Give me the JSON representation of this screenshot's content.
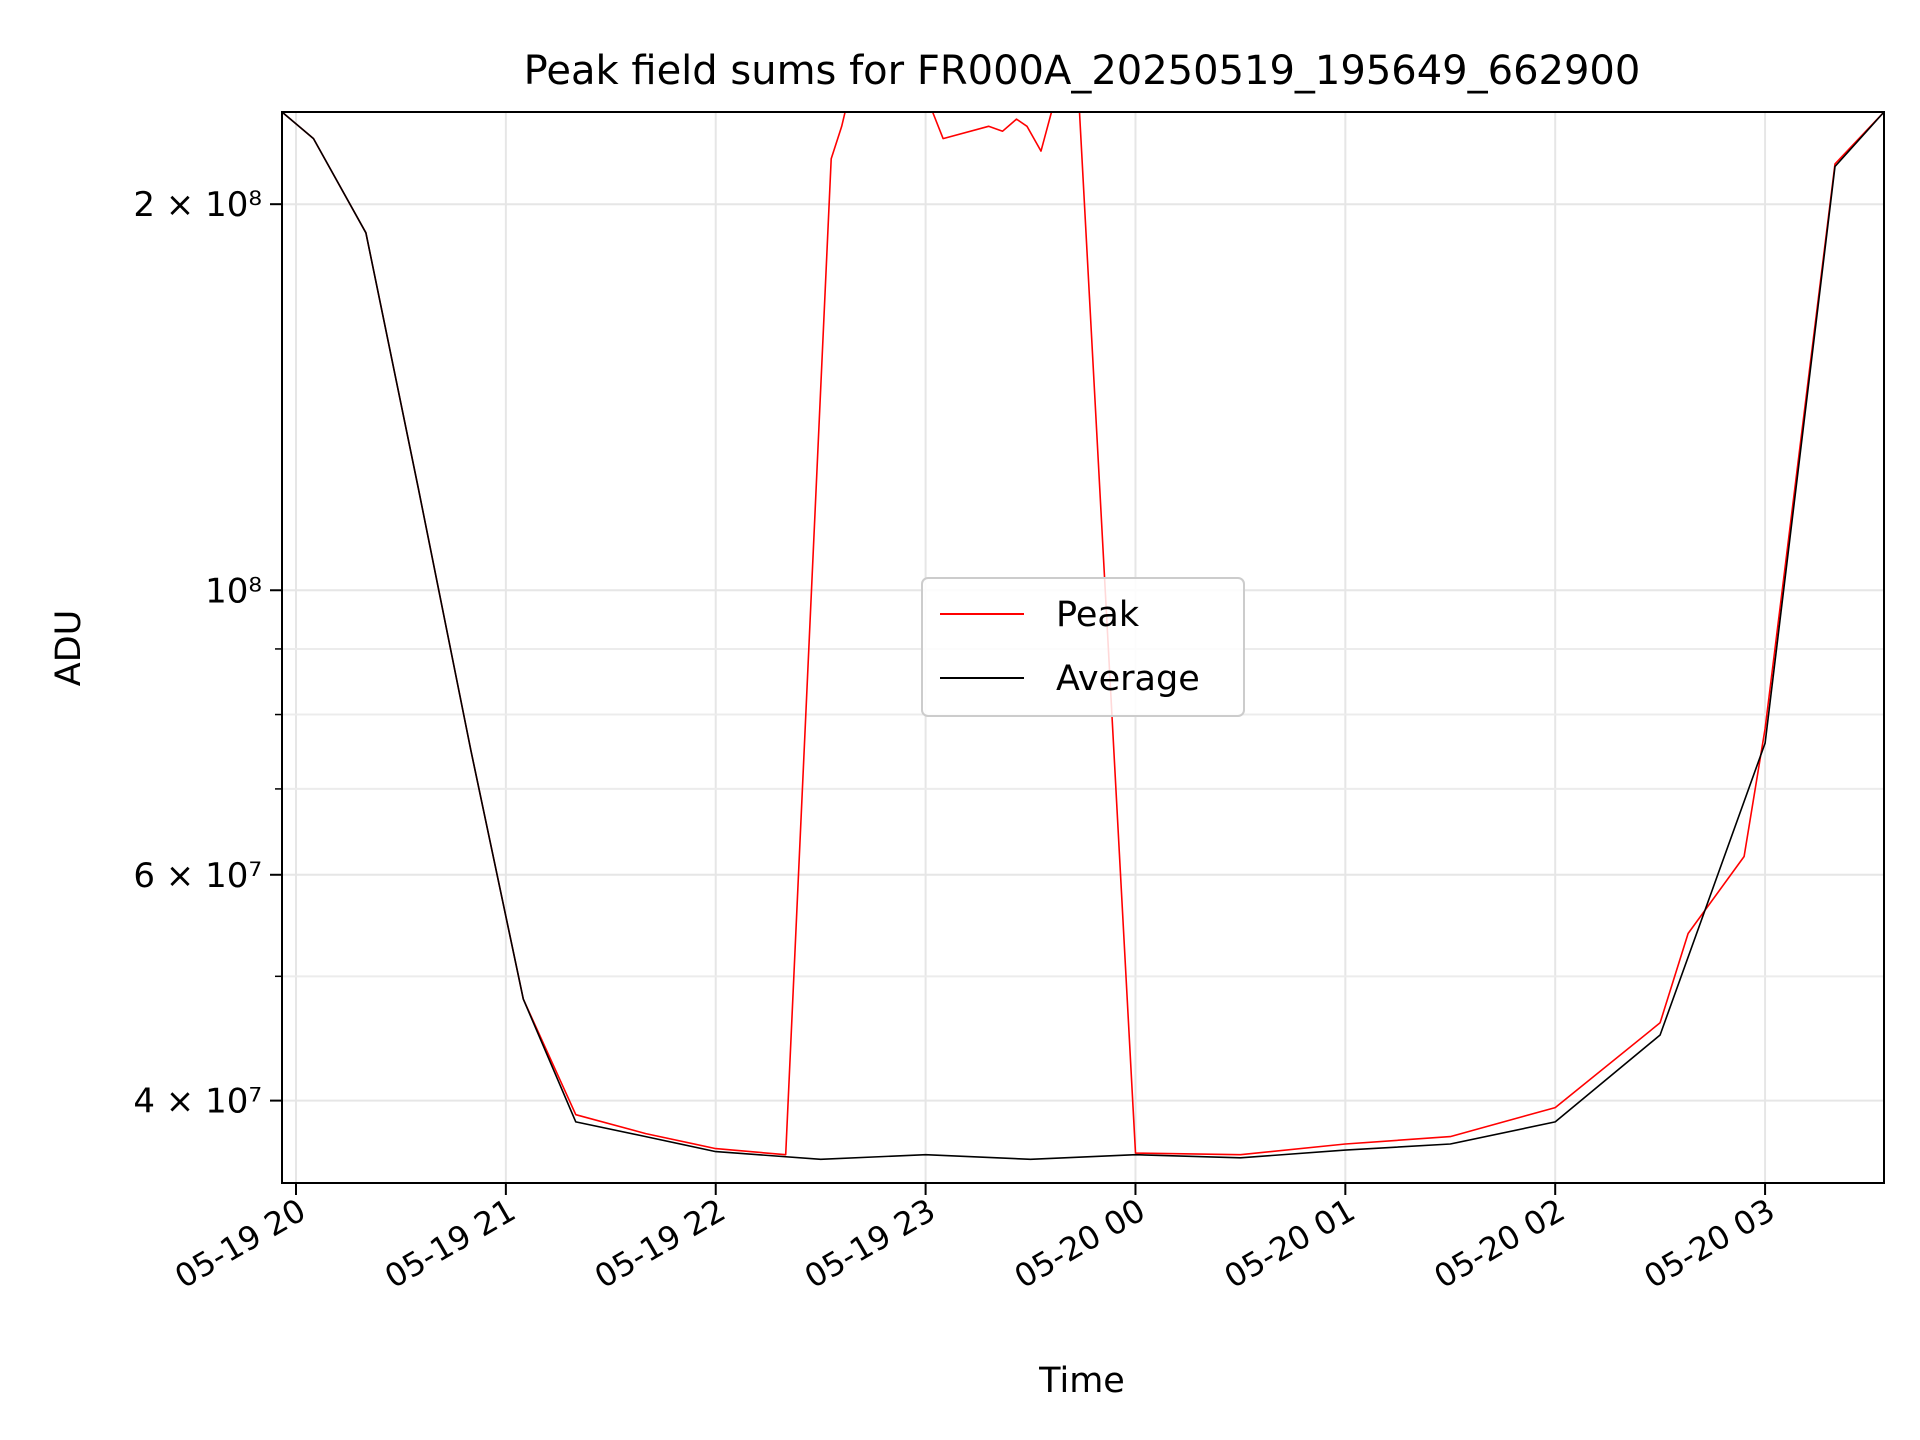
{
  "chart_data": {
    "type": "line",
    "title": "Peak field sums for FR000A_20250519_195649_662900",
    "xlabel": "Time",
    "ylabel": "ADU",
    "x_axis": {
      "type": "datetime",
      "range": [
        "2025-05-19 19:56",
        "2025-05-20 03:34"
      ],
      "ticks": [
        {
          "value": "2025-05-19 20:00",
          "label": "05-19 20"
        },
        {
          "value": "2025-05-19 21:00",
          "label": "05-19 21"
        },
        {
          "value": "2025-05-19 22:00",
          "label": "05-19 22"
        },
        {
          "value": "2025-05-19 23:00",
          "label": "05-19 23"
        },
        {
          "value": "2025-05-20 00:00",
          "label": "05-20 00"
        },
        {
          "value": "2025-05-20 01:00",
          "label": "05-20 01"
        },
        {
          "value": "2025-05-20 02:00",
          "label": "05-20 02"
        },
        {
          "value": "2025-05-20 03:00",
          "label": "05-20 03"
        }
      ]
    },
    "y_axis": {
      "scale": "log",
      "range": [
        34500000,
        236000000
      ],
      "major_ticks": [
        {
          "value": 40000000,
          "label": "4 × 10⁷"
        },
        {
          "value": 60000000,
          "label": "6 × 10⁷"
        },
        {
          "value": 100000000,
          "label": "10⁸"
        },
        {
          "value": 200000000,
          "label": "2 × 10⁸"
        }
      ],
      "minor_ticks": [
        50000000,
        70000000,
        80000000,
        90000000
      ]
    },
    "grid": true,
    "legend": {
      "placement": "center"
    },
    "series": [
      {
        "name": "Peak",
        "color": "#ff0000",
        "points": [
          [
            "2025-05-19 19:56",
            236000000
          ],
          [
            "2025-05-19 20:05",
            225000000
          ],
          [
            "2025-05-19 20:20",
            190000000
          ],
          [
            "2025-05-19 20:35",
            120000000
          ],
          [
            "2025-05-19 20:50",
            75000000
          ],
          [
            "2025-05-19 21:05",
            48000000
          ],
          [
            "2025-05-19 21:20",
            39000000
          ],
          [
            "2025-05-19 21:40",
            37700000
          ],
          [
            "2025-05-19 22:00",
            36700000
          ],
          [
            "2025-05-19 22:20",
            36300000
          ],
          [
            "2025-05-19 22:33",
            217000000
          ],
          [
            "2025-05-19 22:36",
            230000000
          ],
          [
            "2025-05-19 22:37",
            236000000
          ],
          [
            "2025-05-19 22:56",
            236000000
          ],
          [
            "2025-05-19 23:02",
            236000000
          ],
          [
            "2025-05-19 23:05",
            225000000
          ],
          [
            "2025-05-19 23:18",
            230000000
          ],
          [
            "2025-05-19 23:22",
            228000000
          ],
          [
            "2025-05-19 23:26",
            233000000
          ],
          [
            "2025-05-19 23:29",
            230000000
          ],
          [
            "2025-05-19 23:33",
            220000000
          ],
          [
            "2025-05-19 23:36",
            236000000
          ],
          [
            "2025-05-19 23:44",
            236000000
          ],
          [
            "2025-05-20 00:00",
            36400000
          ],
          [
            "2025-05-20 00:30",
            36300000
          ],
          [
            "2025-05-20 01:00",
            37000000
          ],
          [
            "2025-05-20 01:30",
            37500000
          ],
          [
            "2025-05-20 02:00",
            39500000
          ],
          [
            "2025-05-20 02:30",
            46000000
          ],
          [
            "2025-05-20 02:38",
            54000000
          ],
          [
            "2025-05-20 02:54",
            62000000
          ],
          [
            "2025-05-20 03:00",
            78000000
          ],
          [
            "2025-05-20 03:20",
            215000000
          ],
          [
            "2025-05-20 03:34",
            236000000
          ]
        ]
      },
      {
        "name": "Average",
        "color": "#000000",
        "points": [
          [
            "2025-05-19 19:56",
            236000000
          ],
          [
            "2025-05-19 20:05",
            225000000
          ],
          [
            "2025-05-19 20:20",
            190000000
          ],
          [
            "2025-05-19 20:35",
            120000000
          ],
          [
            "2025-05-19 20:50",
            75000000
          ],
          [
            "2025-05-19 21:05",
            48000000
          ],
          [
            "2025-05-19 21:20",
            38500000
          ],
          [
            "2025-05-19 21:40",
            37500000
          ],
          [
            "2025-05-19 22:00",
            36500000
          ],
          [
            "2025-05-19 22:30",
            36000000
          ],
          [
            "2025-05-19 23:00",
            36300000
          ],
          [
            "2025-05-19 23:30",
            36000000
          ],
          [
            "2025-05-20 00:00",
            36300000
          ],
          [
            "2025-05-20 00:30",
            36100000
          ],
          [
            "2025-05-20 01:00",
            36600000
          ],
          [
            "2025-05-20 01:30",
            37000000
          ],
          [
            "2025-05-20 02:00",
            38500000
          ],
          [
            "2025-05-20 02:30",
            45000000
          ],
          [
            "2025-05-20 03:00",
            76000000
          ],
          [
            "2025-05-20 03:20",
            214000000
          ],
          [
            "2025-05-20 03:34",
            236000000
          ]
        ]
      }
    ]
  }
}
